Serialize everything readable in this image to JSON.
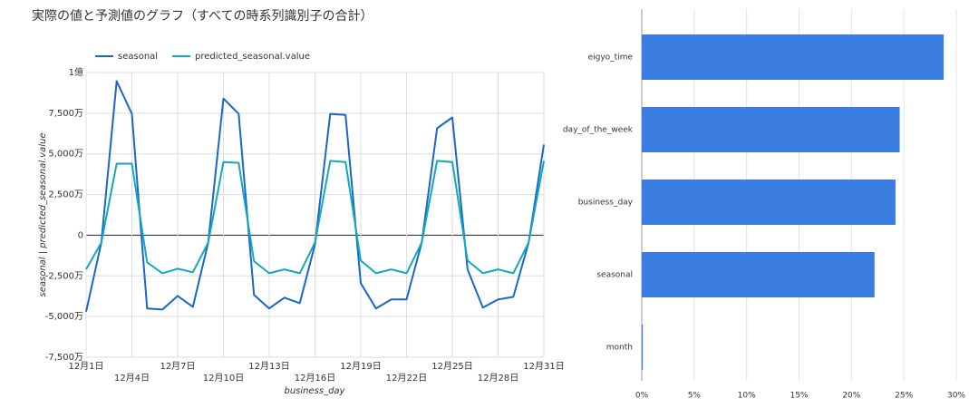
{
  "chart_data": [
    {
      "type": "line",
      "title": "実際の値と予測値のグラフ（すべての時系列識別子の合計）",
      "x_label": "business_day",
      "y_label": "seasonal | predicted_seasonal.value",
      "categories": [
        "12月1日",
        null,
        null,
        "12月4日",
        null,
        null,
        "12月7日",
        null,
        null,
        "12月10日",
        null,
        null,
        "12月13日",
        null,
        null,
        "12月16日",
        null,
        null,
        "12月19日",
        null,
        null,
        "12月22日",
        null,
        null,
        "12月25日",
        null,
        null,
        "12月28日",
        null,
        null,
        "12月31日"
      ],
      "series": [
        {
          "name": "seasonal",
          "color": "#1a66c9",
          "values": [
            -47000000,
            -4500000,
            94700000,
            74600000,
            -45000000,
            -45700000,
            -37300000,
            -44000000,
            -4500000,
            84000000,
            74600000,
            -36700000,
            -45000000,
            -38400000,
            -41800000,
            -5600000,
            74600000,
            74000000,
            -29500000,
            -45000000,
            -39500000,
            -39500000,
            -4500000,
            65700000,
            72400000,
            -21000000,
            -44500000,
            -39500000,
            -37900000,
            -4500000,
            55700000
          ]
        },
        {
          "name": "predicted_seasonal.value",
          "color": "#12a9bd",
          "values": [
            -21000000,
            -4500000,
            44000000,
            44000000,
            -16700000,
            -23400000,
            -20600000,
            -22800000,
            -4500000,
            45000000,
            44500000,
            -16000000,
            -23400000,
            -21000000,
            -23400000,
            -4500000,
            45700000,
            45000000,
            -15600000,
            -23400000,
            -21000000,
            -23400000,
            -4500000,
            45700000,
            45000000,
            -15600000,
            -23400000,
            -21000000,
            -23400000,
            -4500000,
            45700000
          ]
        }
      ],
      "ylim": [
        -75000000,
        100000000
      ],
      "yticks": [
        {
          "value": -75000000,
          "label": "-7,500万"
        },
        {
          "value": -50000000,
          "label": "-5,000万"
        },
        {
          "value": -25000000,
          "label": "-2,500万"
        },
        0,
        {
          "value": 25000000,
          "label": "2,500万"
        },
        {
          "value": 50000000,
          "label": "5,000万"
        },
        {
          "value": 75000000,
          "label": "7,500万"
        },
        {
          "value": 100000000,
          "label": "1億"
        }
      ],
      "grid": true
    },
    {
      "type": "bar",
      "categories": [
        "eigyo_time",
        "day_of_the_week",
        "business_day",
        "seasonal",
        "month"
      ],
      "values": [
        28.8,
        24.6,
        24.2,
        22.2,
        0.1
      ],
      "color": "#3b7de1",
      "xlim": [
        0,
        30
      ],
      "xticks": [
        {
          "value": 0,
          "label": "0%"
        },
        {
          "value": 5,
          "label": "5%"
        },
        {
          "value": 10,
          "label": "10%"
        },
        {
          "value": 15,
          "label": "15%"
        },
        {
          "value": 20,
          "label": "20%"
        },
        {
          "value": 25,
          "label": "25%"
        },
        {
          "value": 30,
          "label": "30%"
        }
      ],
      "grid": true
    }
  ]
}
